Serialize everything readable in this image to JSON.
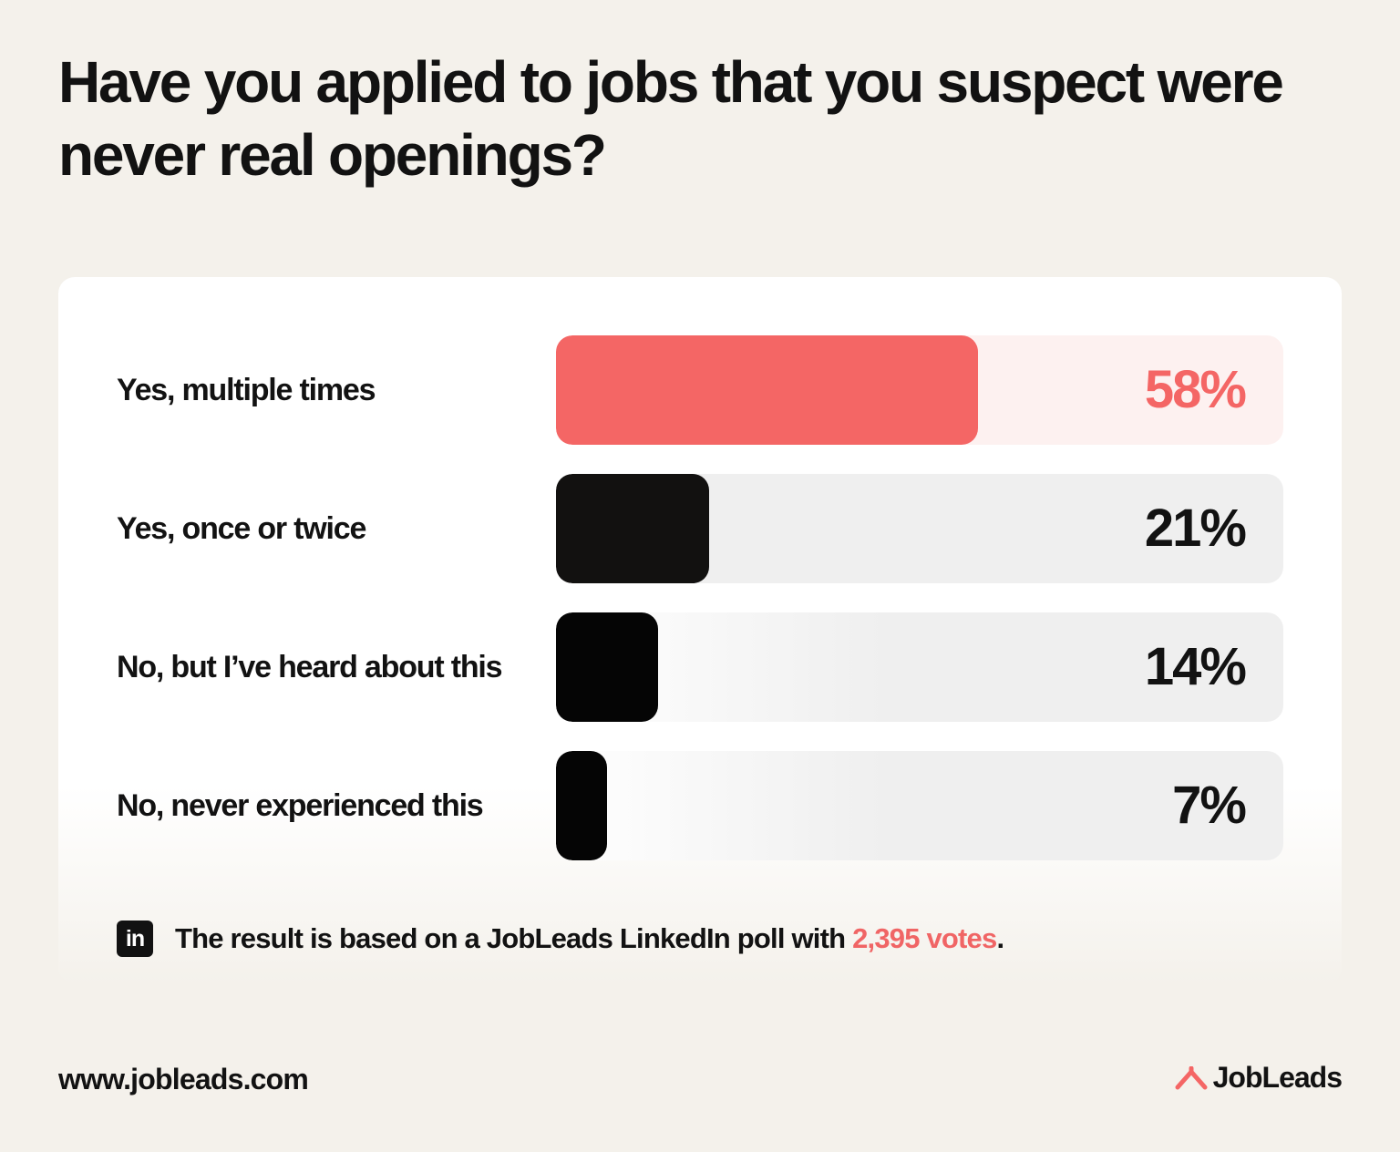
{
  "title": "Have you applied to jobs that you suspect were never real openings?",
  "chart_data": {
    "type": "bar",
    "orientation": "horizontal",
    "categories": [
      "Yes, multiple times",
      "Yes, once or twice",
      "No, but I’ve heard about this",
      "No, never experienced this"
    ],
    "values": [
      58,
      21,
      14,
      7
    ],
    "value_labels": [
      "58%",
      "21%",
      "14%",
      "7%"
    ],
    "unit": "%",
    "xlim": [
      0,
      100
    ],
    "grid": false,
    "legend": "none"
  },
  "colors": {
    "accent": "#f46665",
    "accent_track": "#fdf1f0",
    "bar_dark": "#121110",
    "bar_black": "#050505",
    "track_gray": "#efefef",
    "text": "#121212"
  },
  "footnote": {
    "icon": "linkedin-icon",
    "icon_text": "in",
    "text_before": "The result is based on a JobLeads LinkedIn poll with ",
    "votes": "2,395 votes",
    "text_after": "."
  },
  "footer": {
    "url": "www.jobleads.com",
    "logo_icon": "jobleads-logo-icon",
    "brand": "JobLeads"
  }
}
